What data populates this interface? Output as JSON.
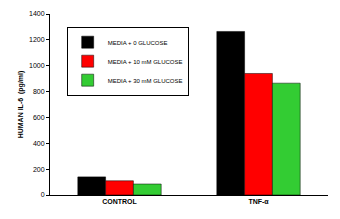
{
  "chart_data": {
    "type": "bar",
    "y_label": "HUMAN IL-6  (pg/ml)",
    "categories": [
      "CONTROL",
      "TNF-α"
    ],
    "series": [
      {
        "name": "MEDIA + 0 GLUCOSE",
        "color": "#000000",
        "values": [
          140,
          1265
        ]
      },
      {
        "name": "MEDIA + 10 mM GLUCOSE",
        "color": "#ff0000",
        "values": [
          110,
          940
        ]
      },
      {
        "name": "MEDIA + 30 mM GLUCOSE",
        "color": "#33cc33",
        "values": [
          85,
          865
        ]
      }
    ],
    "ylim": [
      0,
      1400
    ],
    "yticks": [
      0,
      200,
      400,
      600,
      800,
      1000,
      1200,
      1400
    ],
    "grid": false,
    "legend": "upper left"
  }
}
